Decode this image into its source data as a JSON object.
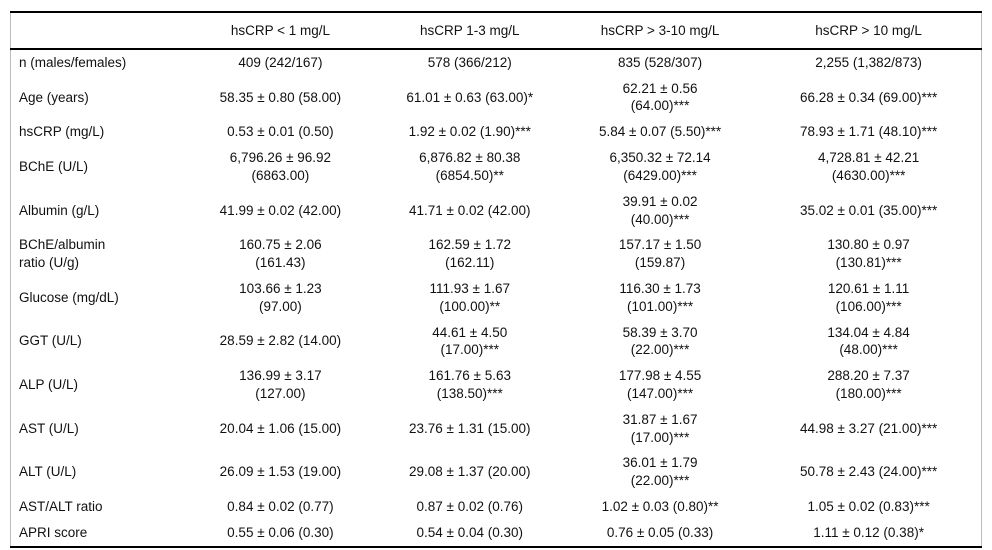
{
  "table": {
    "columns": [
      "",
      "hsCRP < 1 mg/L",
      "hsCRP 1-3 mg/L",
      "hsCRP > 3-10 mg/L",
      "hsCRP > 10 mg/L"
    ],
    "rows": [
      {
        "label": "n (males/females)",
        "values": [
          "409 (242/167)",
          "578 (366/212)",
          "835 (528/307)",
          "2,255 (1,382/873)"
        ]
      },
      {
        "label": "Age (years)",
        "values": [
          "58.35 ± 0.80 (58.00)",
          "61.01 ± 0.63 (63.00)*",
          "62.21 ± 0.56\n(64.00)***",
          "66.28 ± 0.34 (69.00)***"
        ]
      },
      {
        "label": "hsCRP (mg/L)",
        "values": [
          "0.53 ± 0.01 (0.50)",
          "1.92 ± 0.02 (1.90)***",
          "5.84 ± 0.07 (5.50)***",
          "78.93 ± 1.71 (48.10)***"
        ]
      },
      {
        "label": "BChE (U/L)",
        "values": [
          "6,796.26 ± 96.92\n(6863.00)",
          "6,876.82 ± 80.38\n(6854.50)**",
          "6,350.32 ± 72.14\n(6429.00)***",
          "4,728.81 ± 42.21\n(4630.00)***"
        ]
      },
      {
        "label": "Albumin (g/L)",
        "values": [
          "41.99 ± 0.02 (42.00)",
          "41.71 ± 0.02 (42.00)",
          "39.91 ± 0.02\n(40.00)***",
          "35.02 ± 0.01 (35.00)***"
        ]
      },
      {
        "label": "BChE/albumin\nratio (U/g)",
        "values": [
          "160.75 ± 2.06\n(161.43)",
          "162.59 ± 1.72\n(162.11)",
          "157.17 ± 1.50\n(159.87)",
          "130.80 ± 0.97\n(130.81)***"
        ]
      },
      {
        "label": "Glucose (mg/dL)",
        "values": [
          "103.66 ± 1.23\n(97.00)",
          "111.93 ± 1.67\n(100.00)**",
          "116.30 ± 1.73\n(101.00)***",
          "120.61 ± 1.11\n(106.00)***"
        ]
      },
      {
        "label": "GGT (U/L)",
        "values": [
          "28.59 ± 2.82 (14.00)",
          "44.61 ± 4.50\n(17.00)***",
          "58.39 ± 3.70\n(22.00)***",
          "134.04 ± 4.84\n(48.00)***"
        ]
      },
      {
        "label": "ALP (U/L)",
        "values": [
          "136.99 ± 3.17\n(127.00)",
          "161.76 ± 5.63\n(138.50)***",
          "177.98 ± 4.55\n(147.00)***",
          "288.20 ± 7.37\n(180.00)***"
        ]
      },
      {
        "label": "AST (U/L)",
        "values": [
          "20.04 ± 1.06 (15.00)",
          "23.76 ± 1.31 (15.00)",
          "31.87 ± 1.67\n(17.00)***",
          "44.98 ± 3.27 (21.00)***"
        ]
      },
      {
        "label": "ALT (U/L)",
        "values": [
          "26.09 ± 1.53 (19.00)",
          "29.08 ± 1.37 (20.00)",
          "36.01 ± 1.79\n(22.00)***",
          "50.78 ± 2.43 (24.00)***"
        ]
      },
      {
        "label": "AST/ALT ratio",
        "values": [
          "0.84 ± 0.02 (0.77)",
          "0.87 ± 0.02 (0.76)",
          "1.02 ± 0.03 (0.80)**",
          "1.05 ± 0.02 (0.83)***"
        ]
      },
      {
        "label": "APRI score",
        "values": [
          "0.55 ± 0.06 (0.30)",
          "0.54 ± 0.04 (0.30)",
          "0.76 ± 0.05 (0.33)",
          "1.11 ± 0.12 (0.38)*"
        ]
      }
    ]
  }
}
